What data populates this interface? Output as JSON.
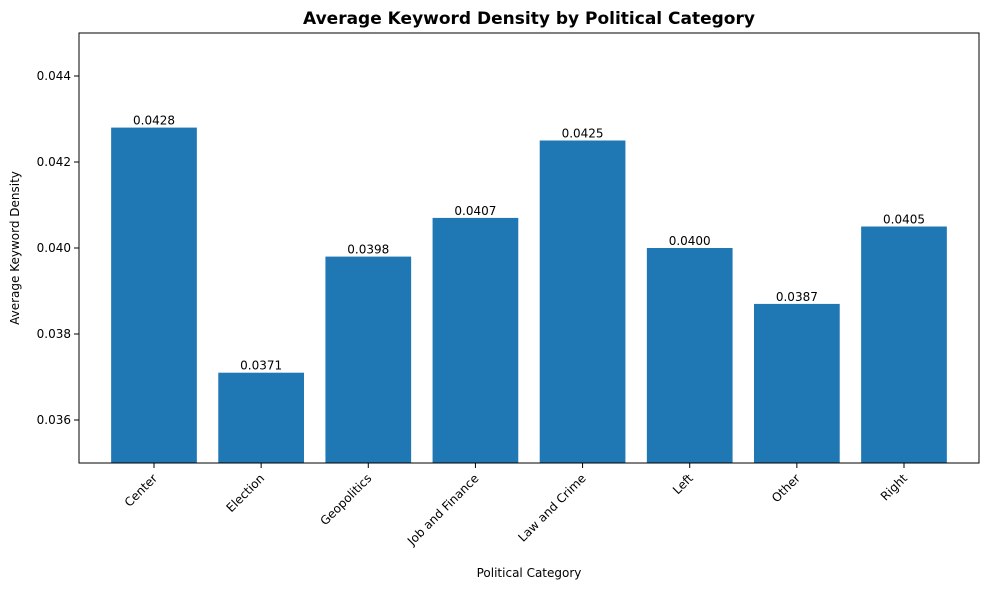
{
  "chart_data": {
    "type": "bar",
    "title": "Average Keyword Density by Political Category",
    "xlabel": "Political Category",
    "ylabel": "Average Keyword Density",
    "categories": [
      "Center",
      "Election",
      "Geopolitics",
      "Job and Finance",
      "Law and Crime",
      "Left",
      "Other",
      "Right"
    ],
    "values": [
      0.0428,
      0.0371,
      0.0398,
      0.0407,
      0.0425,
      0.04,
      0.0387,
      0.0405
    ],
    "data_labels": [
      "0.0428",
      "0.0371",
      "0.0398",
      "0.0407",
      "0.0425",
      "0.0400",
      "0.0387",
      "0.0405"
    ],
    "ylim": [
      0.035,
      0.045
    ],
    "yticks": [
      0.036,
      0.038,
      0.04,
      0.042,
      0.044
    ],
    "ytick_labels": [
      "0.036",
      "0.038",
      "0.040",
      "0.042",
      "0.044"
    ],
    "grid": false,
    "bar_color": "#1f77b4"
  }
}
